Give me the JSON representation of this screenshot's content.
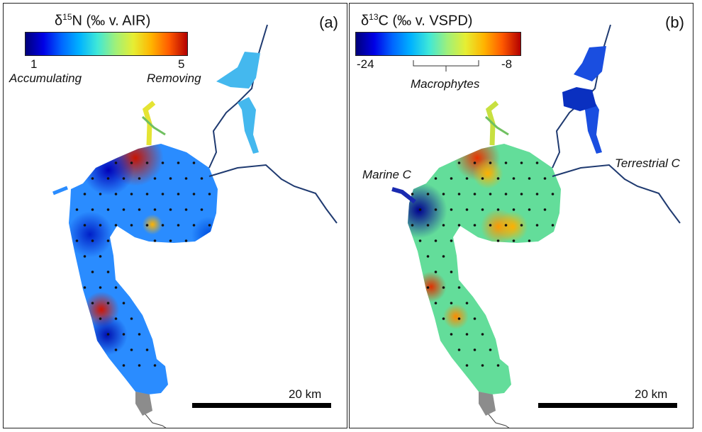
{
  "panels": {
    "a": {
      "label": "(a)",
      "legend": {
        "title_prefix": "δ",
        "title_sup": "15",
        "title_rest": "N (‰ v. AIR)",
        "min": "1",
        "max": "5"
      },
      "notes": {
        "low": "Accumulating",
        "high": "Removing"
      },
      "scalebar": "20 km",
      "hotspots": [
        {
          "x": 186,
          "y": 218,
          "color": "#c81400",
          "r": 22
        },
        {
          "x": 138,
          "y": 432,
          "color": "#d21400",
          "r": 14
        },
        {
          "x": 210,
          "y": 312,
          "color": "#ffb400",
          "r": 8
        },
        {
          "x": 148,
          "y": 235,
          "color": "#0000b8",
          "r": 20
        },
        {
          "x": 122,
          "y": 326,
          "color": "#0020c8",
          "r": 18
        },
        {
          "x": 146,
          "y": 468,
          "color": "#0010b0",
          "r": 16
        },
        {
          "x": 290,
          "y": 326,
          "color": "#0050e0",
          "r": 14
        }
      ]
    },
    "b": {
      "label": "(b)",
      "legend": {
        "title_prefix": "δ",
        "title_sup": "13",
        "title_rest": "C (‰ v. VSPD)",
        "min": "-24",
        "max": "-8"
      },
      "notes": {
        "bracket": "Macrophytes",
        "marine": "Marine C",
        "terrestrial": "Terrestrial C"
      },
      "scalebar": "20 km",
      "hotspots": [
        {
          "x": 180,
          "y": 218,
          "color": "#e83200",
          "r": 18
        },
        {
          "x": 115,
          "y": 400,
          "color": "#e03000",
          "r": 12
        },
        {
          "x": 150,
          "y": 442,
          "color": "#ff8a00",
          "r": 10
        },
        {
          "x": 210,
          "y": 315,
          "color": "#ff9600",
          "r": 14
        },
        {
          "x": 230,
          "y": 315,
          "color": "#ffb000",
          "r": 12
        },
        {
          "x": 195,
          "y": 240,
          "color": "#ffb000",
          "r": 12
        },
        {
          "x": 98,
          "y": 292,
          "color": "#000090",
          "r": 22
        }
      ]
    }
  },
  "colors": {
    "panel_a_base": "#2a8cff",
    "panel_b_base": "#63dd9a",
    "land_gray": "#8c8c8c",
    "site_dot": "#111111"
  }
}
